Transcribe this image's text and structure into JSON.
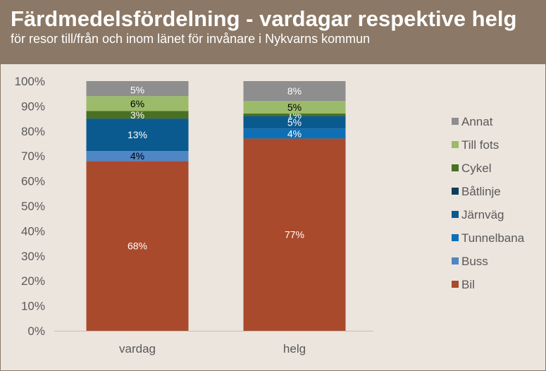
{
  "header": {
    "title": "Färdmedelsfördelning - vardagar respektive helg",
    "subtitle": "för resor till/från och inom länet för invånare i Nykvarns kommun"
  },
  "chart_data": {
    "type": "bar",
    "stacked": true,
    "categories": [
      "vardag",
      "helg"
    ],
    "series": [
      {
        "name": "Bil",
        "values": [
          68,
          77
        ],
        "color": "#aa4a2c",
        "labels": [
          "68%",
          "77%"
        ],
        "label_color": "#ffffff"
      },
      {
        "name": "Buss",
        "values": [
          4,
          0
        ],
        "color": "#4f86c6",
        "labels": [
          "4%",
          ""
        ],
        "label_color": "#000000"
      },
      {
        "name": "Tunnelbana",
        "values": [
          0,
          4
        ],
        "color": "#0e6fb5",
        "labels": [
          "",
          "4%"
        ],
        "label_color": "#ffffff"
      },
      {
        "name": "Järnväg",
        "values": [
          13,
          5
        ],
        "color": "#0b5a8f",
        "labels": [
          "13%",
          "5%"
        ],
        "label_color": "#ffffff"
      },
      {
        "name": "Båtlinje",
        "values": [
          0,
          0
        ],
        "color": "#0c3e5c",
        "labels": [
          "",
          ""
        ],
        "label_color": "#ffffff"
      },
      {
        "name": "Cykel",
        "values": [
          3,
          1
        ],
        "color": "#4a7023",
        "labels": [
          "3%",
          "1%"
        ],
        "label_color": "#ffffff"
      },
      {
        "name": "Till fots",
        "values": [
          6,
          5
        ],
        "color": "#9bbb6a",
        "labels": [
          "6%",
          "5%"
        ],
        "label_color": "#000000"
      },
      {
        "name": "Annat",
        "values": [
          5,
          8
        ],
        "color": "#8e8e8e",
        "labels": [
          "5%",
          "8%"
        ],
        "label_color": "#ffffff"
      }
    ],
    "y_ticks": [
      "0%",
      "10%",
      "20%",
      "30%",
      "40%",
      "50%",
      "60%",
      "70%",
      "80%",
      "90%",
      "100%"
    ],
    "ylim": [
      0,
      100
    ],
    "grid": false,
    "legend_position": "right",
    "legend_order": [
      "Annat",
      "Till fots",
      "Cykel",
      "Båtlinje",
      "Järnväg",
      "Tunnelbana",
      "Buss",
      "Bil"
    ]
  }
}
